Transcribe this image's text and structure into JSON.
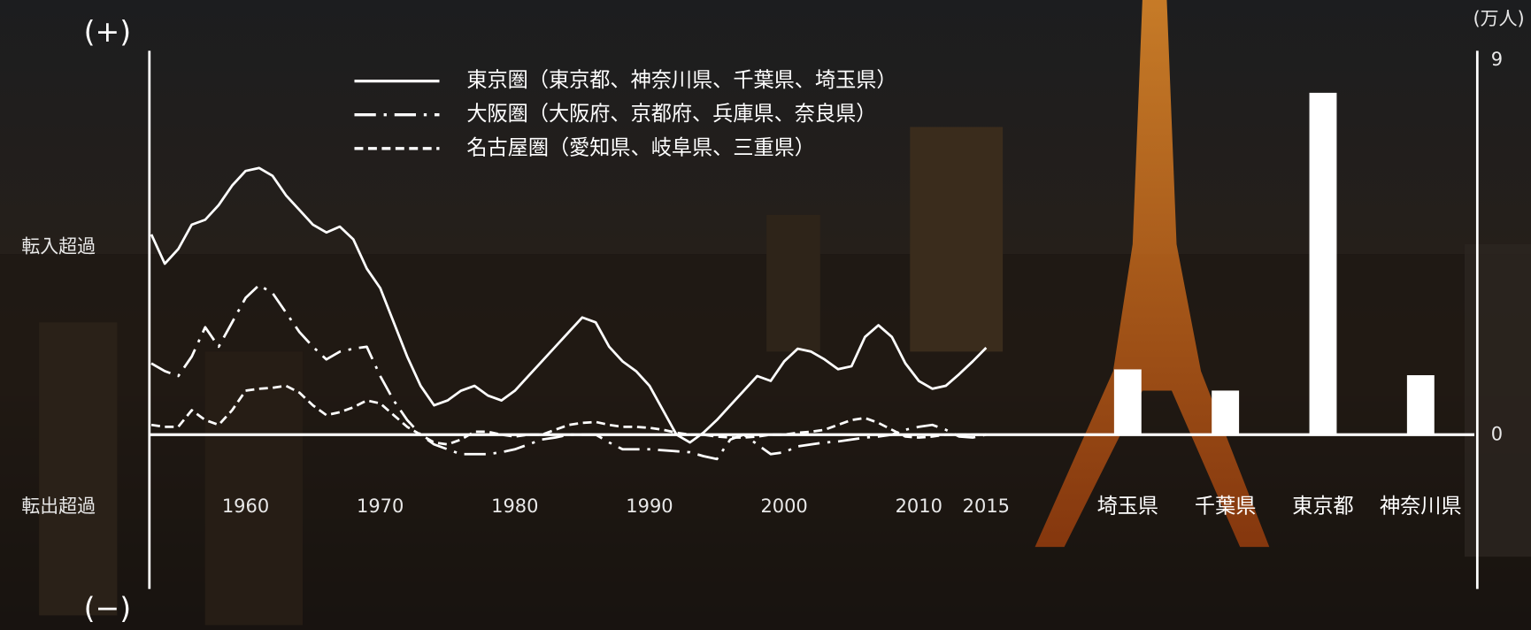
{
  "chart_data": [
    {
      "type": "line",
      "y_top_label": "(+)",
      "y_bottom_label": "(−)",
      "y_upper_label": "転入超過",
      "y_lower_label": "転出超過",
      "xlim": [
        1953,
        2015
      ],
      "ylim": [
        -15.8,
        39.3
      ],
      "xticks": [
        1960,
        1970,
        1980,
        1990,
        2000,
        2010,
        2015
      ],
      "x": [
        1953,
        1954,
        1955,
        1956,
        1957,
        1958,
        1959,
        1960,
        1961,
        1962,
        1963,
        1964,
        1965,
        1966,
        1967,
        1968,
        1969,
        1970,
        1971,
        1972,
        1973,
        1974,
        1975,
        1976,
        1977,
        1978,
        1979,
        1980,
        1981,
        1982,
        1983,
        1984,
        1985,
        1986,
        1987,
        1988,
        1989,
        1990,
        1991,
        1992,
        1993,
        1994,
        1995,
        1996,
        1997,
        1998,
        1999,
        2000,
        2001,
        2002,
        2003,
        2004,
        2005,
        2006,
        2007,
        2008,
        2009,
        2010,
        2011,
        2012,
        2013,
        2014,
        2015
      ],
      "series": [
        {
          "name": "東京圏（東京都、神奈川県、千葉県、埼玉県）",
          "color": "#ffffff",
          "linestyle": "solid",
          "values": [
            20.5,
            17.5,
            19,
            21.5,
            22,
            23.5,
            25.5,
            27,
            27.3,
            26.5,
            24.5,
            23,
            21.5,
            20.7,
            21.3,
            20,
            17,
            15,
            11.5,
            8,
            5,
            3,
            3.5,
            4.5,
            5,
            4,
            3.5,
            4.5,
            6,
            7.5,
            9,
            10.5,
            12,
            11.5,
            9,
            7.5,
            6.5,
            5,
            2.5,
            0,
            -0.8,
            0.2,
            1.5,
            3,
            4.5,
            6,
            5.5,
            7.5,
            8.8,
            8.5,
            7.7,
            6.7,
            7,
            10,
            11.2,
            10,
            7.3,
            5.5,
            4.7,
            5,
            6.2,
            7.5,
            8.9
          ]
        },
        {
          "name": "大阪圏（大阪府、京都府、兵庫県、奈良県）",
          "color": "#ffffff",
          "linestyle": "dashdot",
          "values": [
            7.3,
            6.5,
            6,
            8,
            11,
            9,
            11.5,
            14,
            15.3,
            14.5,
            12.5,
            10.5,
            9,
            7.7,
            8.5,
            8.8,
            9,
            6,
            3.5,
            1.5,
            0,
            -1,
            -1.5,
            -2,
            -2,
            -2,
            -1.8,
            -1.5,
            -1,
            -0.5,
            -0.3,
            0,
            0,
            0,
            -0.8,
            -1.5,
            -1.5,
            -1.5,
            -1.6,
            -1.7,
            -1.8,
            -2.2,
            -2.5,
            -0.5,
            0,
            -1,
            -2,
            -1.8,
            -1.2,
            -1,
            -0.8,
            -0.7,
            -0.5,
            -0.3,
            -0.2,
            0,
            0.5,
            0.8,
            1,
            0.5,
            -0.2,
            -0.3,
            0
          ]
        },
        {
          "name": "名古屋圏（愛知県、岐阜県、三重県）",
          "color": "#ffffff",
          "linestyle": "dashed",
          "values": [
            1,
            0.8,
            0.8,
            2.5,
            1.5,
            1,
            2.5,
            4.5,
            4.7,
            4.8,
            5,
            4.3,
            3,
            2,
            2.3,
            2.8,
            3.5,
            3.2,
            2,
            0.8,
            0,
            -0.8,
            -1,
            -0.5,
            0.3,
            0.3,
            0,
            -0.2,
            0,
            0,
            0.5,
            1,
            1.2,
            1.3,
            1,
            0.8,
            0.8,
            0.7,
            0.5,
            0.2,
            0,
            0,
            -0.2,
            -0.3,
            -0.3,
            -0.2,
            0,
            0,
            0.2,
            0.3,
            0.5,
            1,
            1.5,
            1.7,
            1.2,
            0.5,
            -0.2,
            -0.3,
            -0.2,
            0,
            0,
            0,
            0
          ]
        }
      ]
    },
    {
      "type": "bar",
      "y_unit_label": "(万人)",
      "color": "#ffffff",
      "categories": [
        "埼玉県",
        "千葉県",
        "東京都",
        "神奈川県"
      ],
      "values": [
        1.57,
        1.06,
        8.22,
        1.43
      ],
      "ylim": [
        -3.71,
        9.23
      ],
      "yticks": [
        0,
        9
      ]
    }
  ]
}
